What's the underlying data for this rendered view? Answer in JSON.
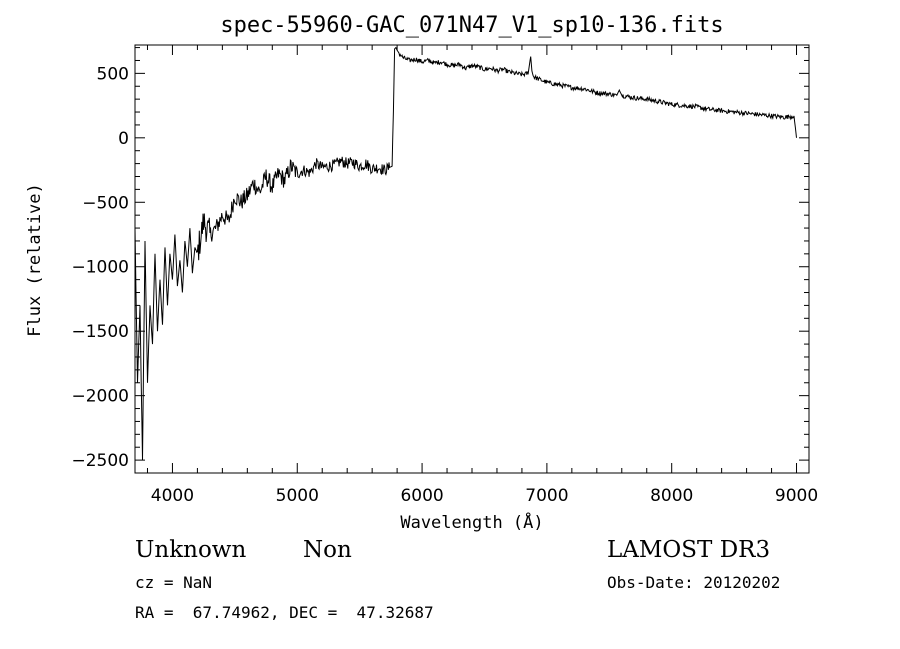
{
  "chart_data": {
    "type": "line",
    "title": "spec-55960-GAC_071N47_V1_sp10-136.fits",
    "xlabel": "Wavelength (Å)",
    "ylabel": "Flux (relative)",
    "xlim": [
      3700,
      9100
    ],
    "ylim": [
      -2600,
      720
    ],
    "x_ticks": [
      4000,
      5000,
      6000,
      7000,
      8000,
      9000
    ],
    "x_tick_labels": [
      "4000",
      "5000",
      "6000",
      "7000",
      "8000",
      "9000"
    ],
    "y_ticks": [
      500,
      0,
      -500,
      -1000,
      -1500,
      -2000,
      -2500
    ],
    "y_tick_labels": [
      "500",
      "0",
      "−500",
      "−1000",
      "−1500",
      "−2000",
      "−2500"
    ],
    "series": [
      {
        "name": "flux",
        "x": [
          3700,
          3720,
          3740,
          3760,
          3780,
          3800,
          3820,
          3840,
          3860,
          3880,
          3900,
          3920,
          3940,
          3960,
          3980,
          4000,
          4020,
          4040,
          4060,
          4080,
          4100,
          4120,
          4140,
          4160,
          4180,
          4200,
          4250,
          4300,
          4350,
          4400,
          4450,
          4500,
          4550,
          4600,
          4650,
          4700,
          4750,
          4800,
          4850,
          4900,
          4950,
          5000,
          5050,
          5100,
          5150,
          5200,
          5250,
          5300,
          5350,
          5400,
          5450,
          5500,
          5550,
          5600,
          5650,
          5700,
          5740,
          5760,
          5770,
          5780,
          5790,
          5800,
          5820,
          5850,
          5900,
          5950,
          6000,
          6050,
          6100,
          6150,
          6200,
          6250,
          6300,
          6350,
          6400,
          6450,
          6500,
          6550,
          6600,
          6650,
          6700,
          6750,
          6800,
          6850,
          6870,
          6880,
          6890,
          6900,
          6950,
          7000,
          7100,
          7200,
          7300,
          7400,
          7500,
          7560,
          7580,
          7600,
          7700,
          7800,
          7900,
          8000,
          8100,
          8200,
          8300,
          8400,
          8500,
          8600,
          8700,
          8800,
          8900,
          8980,
          9000
        ],
        "values": [
          -700,
          -1900,
          -1300,
          -2500,
          -800,
          -1900,
          -1300,
          -1600,
          -900,
          -1500,
          -1100,
          -1450,
          -850,
          -1300,
          -900,
          -1100,
          -750,
          -1150,
          -950,
          -1200,
          -800,
          -1000,
          -700,
          -1050,
          -850,
          -900,
          -650,
          -750,
          -700,
          -600,
          -650,
          -450,
          -500,
          -450,
          -350,
          -420,
          -300,
          -380,
          -280,
          -330,
          -220,
          -280,
          -250,
          -270,
          -200,
          -230,
          -220,
          -210,
          -180,
          -200,
          -190,
          -220,
          -200,
          -240,
          -230,
          -250,
          -230,
          -220,
          200,
          690,
          700,
          680,
          650,
          620,
          600,
          610,
          590,
          600,
          580,
          590,
          570,
          560,
          570,
          540,
          560,
          550,
          530,
          540,
          520,
          530,
          510,
          500,
          490,
          500,
          630,
          520,
          480,
          470,
          450,
          430,
          410,
          390,
          380,
          350,
          340,
          330,
          370,
          330,
          310,
          300,
          280,
          260,
          250,
          240,
          220,
          210,
          200,
          190,
          180,
          170,
          160,
          170,
          0
        ]
      }
    ]
  },
  "info": {
    "object_class": "Unknown",
    "subclass": "Non",
    "survey": "LAMOST DR3",
    "cz": "cz = NaN",
    "obs_date": "Obs-Date: 20120202",
    "coords": "RA =  67.74962, DEC =  47.32687"
  }
}
